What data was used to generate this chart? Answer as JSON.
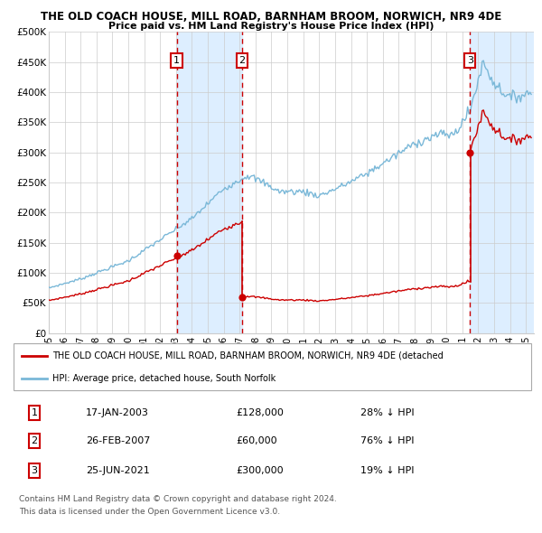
{
  "title1": "THE OLD COACH HOUSE, MILL ROAD, BARNHAM BROOM, NORWICH, NR9 4DE",
  "title2": "Price paid vs. HM Land Registry's House Price Index (HPI)",
  "ylim": [
    0,
    500000
  ],
  "xlim_start": 1995.0,
  "xlim_end": 2025.5,
  "yticks": [
    0,
    50000,
    100000,
    150000,
    200000,
    250000,
    300000,
    350000,
    400000,
    450000,
    500000
  ],
  "ytick_labels": [
    "£0",
    "£50K",
    "£100K",
    "£150K",
    "£200K",
    "£250K",
    "£300K",
    "£350K",
    "£400K",
    "£450K",
    "£500K"
  ],
  "xticks": [
    1995,
    1996,
    1997,
    1998,
    1999,
    2000,
    2001,
    2002,
    2003,
    2004,
    2005,
    2006,
    2007,
    2008,
    2009,
    2010,
    2011,
    2012,
    2013,
    2014,
    2015,
    2016,
    2017,
    2018,
    2019,
    2020,
    2021,
    2022,
    2023,
    2024,
    2025
  ],
  "sale1_date": 2003.04,
  "sale1_price": 128000,
  "sale1_label": "1",
  "sale1_text": "17-JAN-2003",
  "sale1_amount": "£128,000",
  "sale1_hpi": "28% ↓ HPI",
  "sale2_date": 2007.15,
  "sale2_price": 60000,
  "sale2_label": "2",
  "sale2_text": "26-FEB-2007",
  "sale2_amount": "£60,000",
  "sale2_hpi": "76% ↓ HPI",
  "sale3_date": 2021.48,
  "sale3_price": 300000,
  "sale3_label": "3",
  "sale3_text": "25-JUN-2021",
  "sale3_amount": "£300,000",
  "sale3_hpi": "19% ↓ HPI",
  "hpi_color": "#7ab8d8",
  "price_color": "#cc0000",
  "shade_color": "#ddeeff",
  "grid_color": "#cccccc",
  "bg_color": "#ffffff",
  "legend_line1": "THE OLD COACH HOUSE, MILL ROAD, BARNHAM BROOM, NORWICH, NR9 4DE (detached",
  "legend_line2": "HPI: Average price, detached house, South Norfolk",
  "footer1": "Contains HM Land Registry data © Crown copyright and database right 2024.",
  "footer2": "This data is licensed under the Open Government Licence v3.0."
}
